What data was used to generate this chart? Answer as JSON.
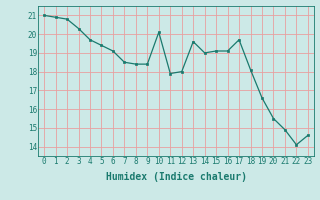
{
  "x": [
    0,
    1,
    2,
    3,
    4,
    5,
    6,
    7,
    8,
    9,
    10,
    11,
    12,
    13,
    14,
    15,
    16,
    17,
    18,
    19,
    20,
    21,
    22,
    23
  ],
  "y": [
    21.0,
    20.9,
    20.8,
    20.3,
    19.7,
    19.4,
    19.1,
    18.5,
    18.4,
    18.4,
    20.1,
    17.9,
    18.0,
    19.6,
    19.0,
    19.1,
    19.1,
    19.7,
    18.1,
    16.6,
    15.5,
    14.9,
    14.1,
    14.6
  ],
  "xlabel": "Humidex (Indice chaleur)",
  "xlim": [
    -0.5,
    23.5
  ],
  "ylim": [
    13.5,
    21.5
  ],
  "yticks": [
    14,
    15,
    16,
    17,
    18,
    19,
    20,
    21
  ],
  "xticks": [
    0,
    1,
    2,
    3,
    4,
    5,
    6,
    7,
    8,
    9,
    10,
    11,
    12,
    13,
    14,
    15,
    16,
    17,
    18,
    19,
    20,
    21,
    22,
    23
  ],
  "line_color": "#1a7a6e",
  "marker": "s",
  "marker_size": 2.0,
  "bg_color": "#cce9e7",
  "grid_color": "#e8e8e8",
  "xlabel_fontsize": 7.0,
  "tick_fontsize": 5.5
}
